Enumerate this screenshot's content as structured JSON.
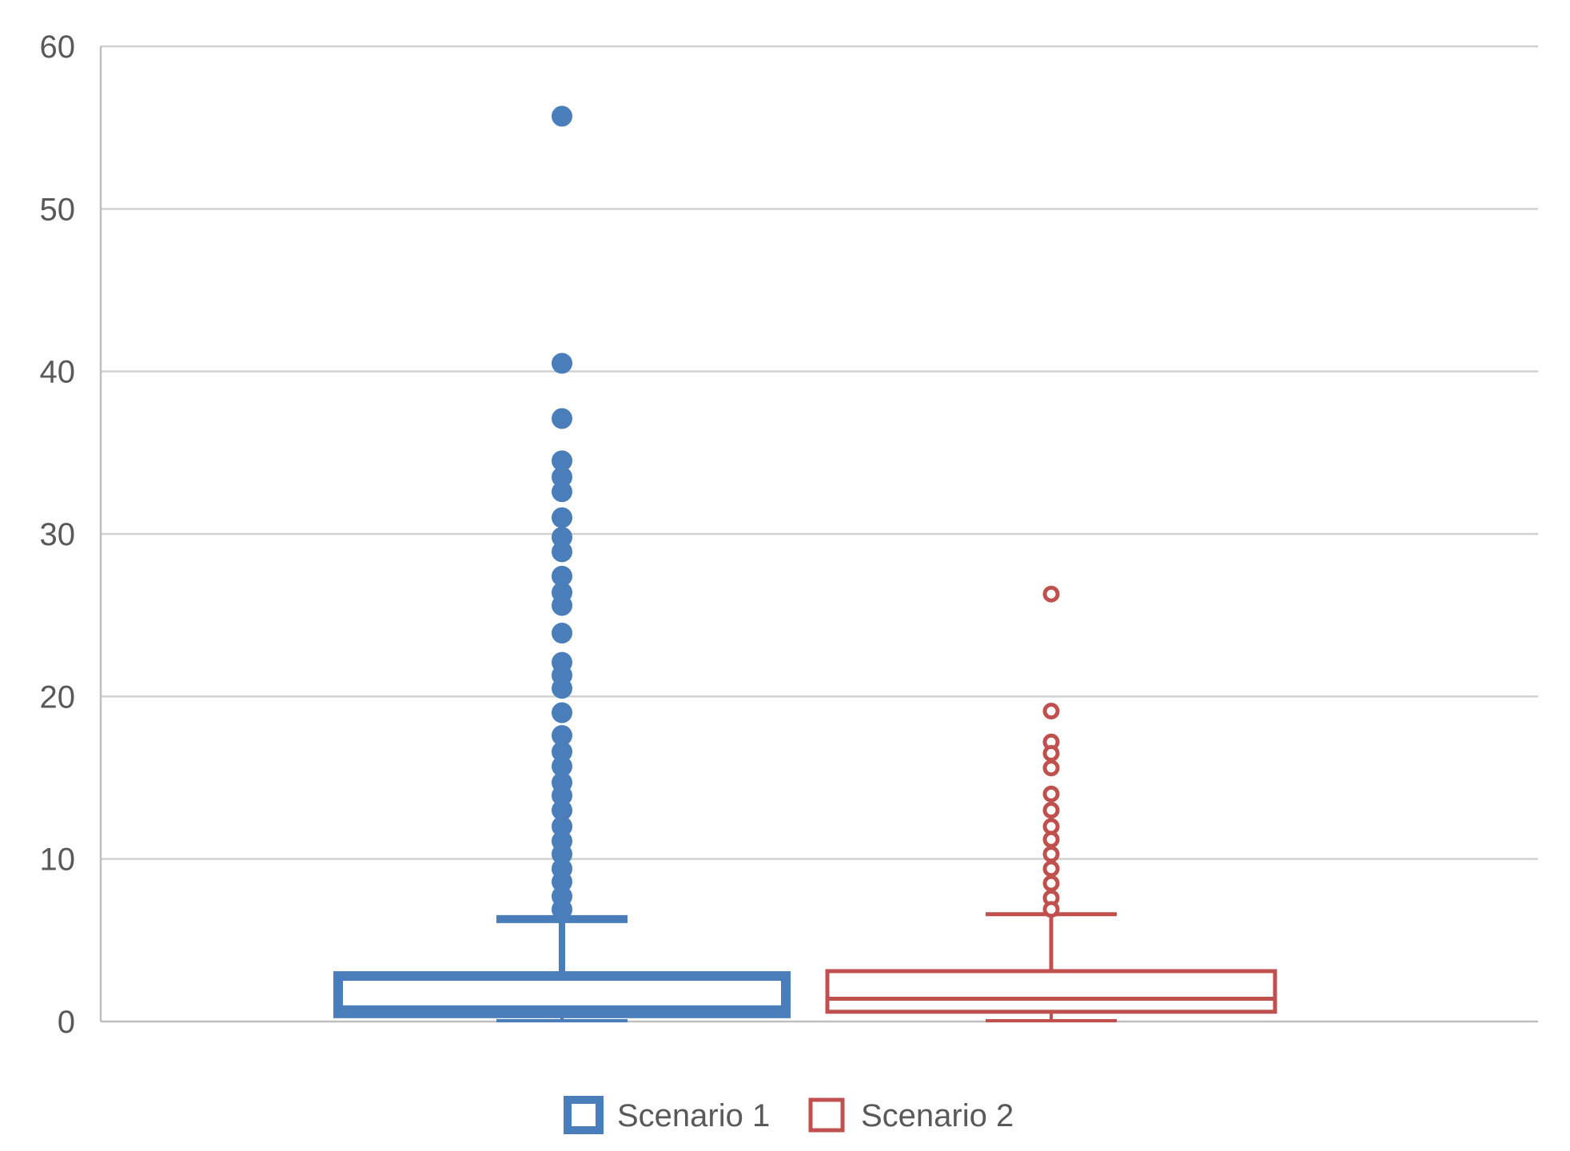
{
  "chart_data": {
    "type": "boxplot",
    "title": "",
    "xlabel": "",
    "ylabel": "",
    "ylim": [
      0,
      60
    ],
    "yticks": [
      0,
      10,
      20,
      30,
      40,
      50,
      60
    ],
    "grid": true,
    "legend_position": "bottom-center",
    "series": [
      {
        "name": "Scenario 1",
        "color": "#4a7ebb",
        "box_style": "bold",
        "min": 0,
        "q1": 0.5,
        "median": 0.7,
        "q3": 2.8,
        "whisker_high": 6.3,
        "outliers": [
          55.7,
          40.5,
          37.1,
          34.5,
          33.5,
          32.6,
          31.0,
          29.8,
          28.9,
          27.4,
          26.4,
          25.6,
          23.9,
          22.1,
          21.3,
          20.5,
          19.0,
          17.6,
          16.6,
          15.7,
          14.7,
          13.9,
          13.0,
          12.0,
          11.1,
          10.3,
          9.4,
          8.6,
          7.7,
          6.9
        ]
      },
      {
        "name": "Scenario 2",
        "color": "#c0504d",
        "box_style": "thin",
        "min": 0,
        "q1": 0.6,
        "median": 1.4,
        "q3": 3.1,
        "whisker_high": 6.6,
        "outliers": [
          26.3,
          19.1,
          17.2,
          16.5,
          15.6,
          14.0,
          13.0,
          12.0,
          11.2,
          10.3,
          9.4,
          8.5,
          7.6,
          6.9
        ]
      }
    ]
  }
}
